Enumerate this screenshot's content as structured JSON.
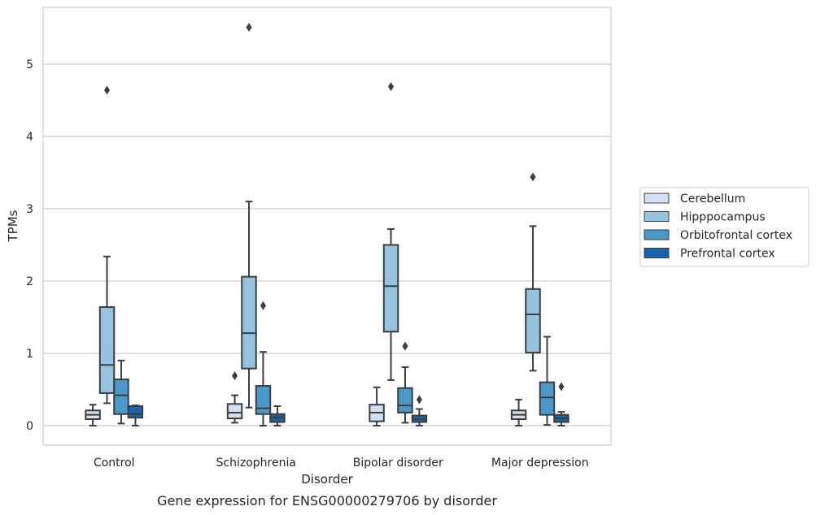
{
  "chart_data": {
    "type": "box",
    "caption": "Gene expression for ENSG00000279706 by disorder",
    "xlabel": "Disorder",
    "ylabel": "TPMs",
    "ylim": [
      -0.27,
      5.8
    ],
    "yticks": [
      0,
      1,
      2,
      3,
      4,
      5
    ],
    "grid": true,
    "legend_placement": "right",
    "categories": [
      "Control",
      "Schizophrenia",
      "Bipolar disorder",
      "Major depression"
    ],
    "series": [
      {
        "name": "Cerebellum",
        "color": "#d0e1f2",
        "boxes": [
          {
            "whislo": 0.0,
            "q1": 0.09,
            "med": 0.15,
            "q3": 0.21,
            "whishi": 0.29,
            "fliers": []
          },
          {
            "whislo": 0.04,
            "q1": 0.1,
            "med": 0.18,
            "q3": 0.3,
            "whishi": 0.42,
            "fliers": [
              0.69
            ]
          },
          {
            "whislo": 0.0,
            "q1": 0.06,
            "med": 0.18,
            "q3": 0.29,
            "whishi": 0.53,
            "fliers": []
          },
          {
            "whislo": 0.0,
            "q1": 0.09,
            "med": 0.15,
            "q3": 0.21,
            "whishi": 0.36,
            "fliers": []
          }
        ]
      },
      {
        "name": "Hipppocampus",
        "color": "#94c4df",
        "boxes": [
          {
            "whislo": 0.31,
            "q1": 0.45,
            "med": 0.84,
            "q3": 1.64,
            "whishi": 2.34,
            "fliers": [
              4.64
            ]
          },
          {
            "whislo": 0.25,
            "q1": 0.79,
            "med": 1.28,
            "q3": 2.06,
            "whishi": 3.1,
            "fliers": [
              5.51
            ]
          },
          {
            "whislo": 0.63,
            "q1": 1.3,
            "med": 1.93,
            "q3": 2.5,
            "whishi": 2.72,
            "fliers": [
              4.69
            ]
          },
          {
            "whislo": 0.76,
            "q1": 1.01,
            "med": 1.54,
            "q3": 1.89,
            "whishi": 2.76,
            "fliers": [
              3.44
            ]
          }
        ]
      },
      {
        "name": "Orbitofrontal cortex",
        "color": "#4a98c9",
        "boxes": [
          {
            "whislo": 0.03,
            "q1": 0.16,
            "med": 0.42,
            "q3": 0.64,
            "whishi": 0.9,
            "fliers": []
          },
          {
            "whislo": 0.0,
            "q1": 0.16,
            "med": 0.24,
            "q3": 0.55,
            "whishi": 1.02,
            "fliers": [
              1.66
            ]
          },
          {
            "whislo": 0.04,
            "q1": 0.18,
            "med": 0.28,
            "q3": 0.52,
            "whishi": 0.81,
            "fliers": [
              1.1
            ]
          },
          {
            "whislo": 0.01,
            "q1": 0.15,
            "med": 0.39,
            "q3": 0.6,
            "whishi": 1.23,
            "fliers": []
          }
        ]
      },
      {
        "name": "Prefrontal cortex",
        "color": "#1764ab",
        "boxes": [
          {
            "whislo": 0.0,
            "q1": 0.11,
            "med": 0.16,
            "q3": 0.27,
            "whishi": 0.28,
            "fliers": []
          },
          {
            "whislo": 0.0,
            "q1": 0.05,
            "med": 0.11,
            "q3": 0.16,
            "whishi": 0.27,
            "fliers": []
          },
          {
            "whislo": 0.0,
            "q1": 0.05,
            "med": 0.09,
            "q3": 0.14,
            "whishi": 0.23,
            "fliers": [
              0.36
            ]
          },
          {
            "whislo": 0.0,
            "q1": 0.05,
            "med": 0.1,
            "q3": 0.15,
            "whishi": 0.19,
            "fliers": [
              0.54
            ]
          }
        ]
      }
    ]
  }
}
